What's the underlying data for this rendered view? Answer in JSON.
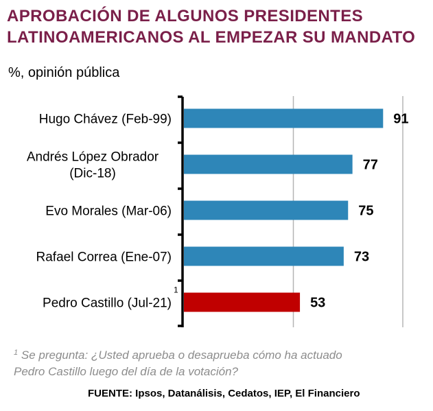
{
  "title_line1": "APROBACIÓN DE ALGUNOS PRESIDENTES",
  "title_line2": "LATINOAMERICANOS AL EMPEZAR SU MANDATO",
  "subtitle": "%, opinión pública",
  "colors": {
    "title": "#7a1f49",
    "bar": "#2e86b8",
    "highlight": "#c00000",
    "grid": "#b5b5b5"
  },
  "chart_data": {
    "type": "bar",
    "orientation": "horizontal",
    "title": "APROBACIÓN DE ALGUNOS PRESIDENTES LATINOAMERICANOS AL EMPEZAR SU MANDATO",
    "ylabel": "%, opinión pública",
    "xlim": [
      0,
      100
    ],
    "grid": true,
    "categories": [
      [
        "Hugo Chávez (Feb-99)"
      ],
      [
        "Andrés López Obrador",
        "(Dic-18)"
      ],
      [
        "Evo Morales (Mar-06)"
      ],
      [
        "Rafael Correa (Ene-07)"
      ],
      [
        "Pedro Castillo (Jul-21)"
      ]
    ],
    "values": [
      91,
      77,
      75,
      73,
      53
    ],
    "value_labels": [
      "91",
      "77",
      "75",
      "73",
      "53"
    ],
    "highlight_index": 4,
    "highlight_marker": "1"
  },
  "footnote": {
    "marker": "1",
    "line1": "Se pregunta: ¿Usted aprueba o desaprueba cómo ha actuado",
    "line2": "Pedro Castillo luego del día de la votación?"
  },
  "source": "FUENTE: Ipsos, Datanálisis, Cedatos, IEP, El Financiero"
}
